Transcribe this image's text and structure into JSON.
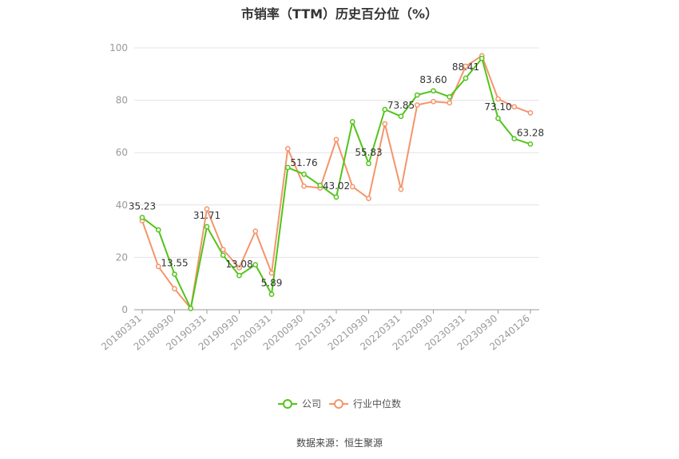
{
  "title": "市销率（TTM）历史百分位（%）",
  "source": "数据来源：恒生聚源",
  "colors": {
    "company": "#52c41a",
    "industry": "#f4956b",
    "grid": "#e3e3e3",
    "axis": "#999999",
    "label": "#333333",
    "tick": "#999999"
  },
  "chart_data": {
    "type": "line",
    "title": "市销率（TTM）历史百分位（%）",
    "xlabel": "",
    "ylabel": "",
    "ylim": [
      0,
      100
    ],
    "yticks": [
      0,
      20,
      40,
      60,
      80,
      100
    ],
    "xtick_labels": [
      "20180331",
      "20180930",
      "20190331",
      "20190930",
      "20200331",
      "20200930",
      "20210331",
      "20210930",
      "20220331",
      "20220930",
      "20230331",
      "20230930",
      "20240126"
    ],
    "x": [
      "20180331",
      "20180630",
      "20180930",
      "20181231",
      "20190331",
      "20190630",
      "20190930",
      "20191231",
      "20200331",
      "20200630",
      "20200930",
      "20201231",
      "20210331",
      "20210630",
      "20210930",
      "20211231",
      "20220331",
      "20220630",
      "20220930",
      "20221231",
      "20230331",
      "20230630",
      "20230930",
      "20231231",
      "20240126"
    ],
    "grid": true,
    "legend": "bottom",
    "series": [
      {
        "name": "公司",
        "values": [
          35.23,
          30.5,
          13.55,
          0.5,
          31.71,
          20.8,
          13.08,
          17.2,
          5.89,
          54.3,
          51.76,
          47.5,
          43.02,
          71.8,
          55.83,
          76.5,
          73.85,
          82.0,
          83.6,
          81.3,
          88.41,
          96.0,
          73.1,
          65.3,
          63.28
        ]
      },
      {
        "name": "行业中位数",
        "values": [
          34.0,
          16.5,
          8.0,
          0.5,
          38.5,
          23.0,
          16.0,
          30.0,
          14.0,
          61.5,
          47.2,
          46.5,
          65.0,
          47.0,
          42.5,
          71.0,
          46.0,
          78.2,
          79.5,
          79.0,
          93.0,
          97.0,
          80.5,
          77.5,
          75.2
        ]
      }
    ],
    "data_labels": [
      {
        "index": 0,
        "text": "35.23"
      },
      {
        "index": 2,
        "text": "13.55"
      },
      {
        "index": 4,
        "text": "31.71"
      },
      {
        "index": 6,
        "text": "13.08"
      },
      {
        "index": 8,
        "text": "5.89"
      },
      {
        "index": 10,
        "text": "51.76"
      },
      {
        "index": 12,
        "text": "43.02"
      },
      {
        "index": 14,
        "text": "55.83"
      },
      {
        "index": 16,
        "text": "73.85"
      },
      {
        "index": 18,
        "text": "83.60"
      },
      {
        "index": 20,
        "text": "88.41"
      },
      {
        "index": 22,
        "text": "73.10"
      },
      {
        "index": 24,
        "text": "63.28"
      }
    ]
  }
}
